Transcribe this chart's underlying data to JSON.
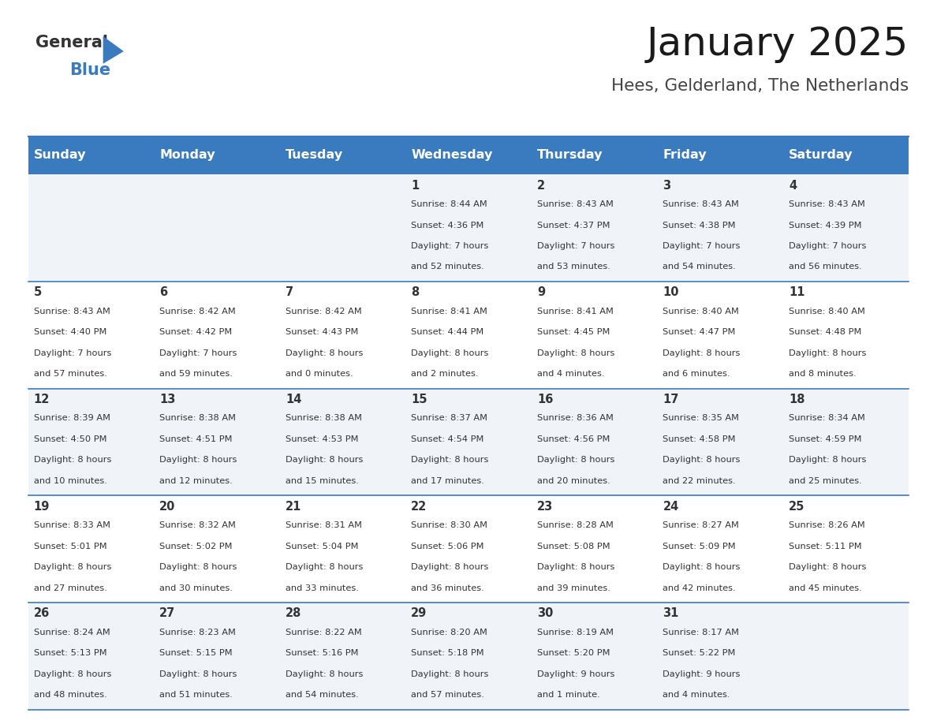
{
  "title": "January 2025",
  "subtitle": "Hees, Gelderland, The Netherlands",
  "header_bg": "#3a7bbf",
  "header_text_color": "#ffffff",
  "cell_bg_even": "#f0f4f8",
  "cell_bg_odd": "#ffffff",
  "row_line_color": "#3a7bbf",
  "text_color": "#333333",
  "days_of_week": [
    "Sunday",
    "Monday",
    "Tuesday",
    "Wednesday",
    "Thursday",
    "Friday",
    "Saturday"
  ],
  "calendar_data": [
    [
      {
        "day": "",
        "sunrise": "",
        "sunset": "",
        "daylight": ""
      },
      {
        "day": "",
        "sunrise": "",
        "sunset": "",
        "daylight": ""
      },
      {
        "day": "",
        "sunrise": "",
        "sunset": "",
        "daylight": ""
      },
      {
        "day": "1",
        "sunrise": "Sunrise: 8:44 AM",
        "sunset": "Sunset: 4:36 PM",
        "daylight": "Daylight: 7 hours\nand 52 minutes."
      },
      {
        "day": "2",
        "sunrise": "Sunrise: 8:43 AM",
        "sunset": "Sunset: 4:37 PM",
        "daylight": "Daylight: 7 hours\nand 53 minutes."
      },
      {
        "day": "3",
        "sunrise": "Sunrise: 8:43 AM",
        "sunset": "Sunset: 4:38 PM",
        "daylight": "Daylight: 7 hours\nand 54 minutes."
      },
      {
        "day": "4",
        "sunrise": "Sunrise: 8:43 AM",
        "sunset": "Sunset: 4:39 PM",
        "daylight": "Daylight: 7 hours\nand 56 minutes."
      }
    ],
    [
      {
        "day": "5",
        "sunrise": "Sunrise: 8:43 AM",
        "sunset": "Sunset: 4:40 PM",
        "daylight": "Daylight: 7 hours\nand 57 minutes."
      },
      {
        "day": "6",
        "sunrise": "Sunrise: 8:42 AM",
        "sunset": "Sunset: 4:42 PM",
        "daylight": "Daylight: 7 hours\nand 59 minutes."
      },
      {
        "day": "7",
        "sunrise": "Sunrise: 8:42 AM",
        "sunset": "Sunset: 4:43 PM",
        "daylight": "Daylight: 8 hours\nand 0 minutes."
      },
      {
        "day": "8",
        "sunrise": "Sunrise: 8:41 AM",
        "sunset": "Sunset: 4:44 PM",
        "daylight": "Daylight: 8 hours\nand 2 minutes."
      },
      {
        "day": "9",
        "sunrise": "Sunrise: 8:41 AM",
        "sunset": "Sunset: 4:45 PM",
        "daylight": "Daylight: 8 hours\nand 4 minutes."
      },
      {
        "day": "10",
        "sunrise": "Sunrise: 8:40 AM",
        "sunset": "Sunset: 4:47 PM",
        "daylight": "Daylight: 8 hours\nand 6 minutes."
      },
      {
        "day": "11",
        "sunrise": "Sunrise: 8:40 AM",
        "sunset": "Sunset: 4:48 PM",
        "daylight": "Daylight: 8 hours\nand 8 minutes."
      }
    ],
    [
      {
        "day": "12",
        "sunrise": "Sunrise: 8:39 AM",
        "sunset": "Sunset: 4:50 PM",
        "daylight": "Daylight: 8 hours\nand 10 minutes."
      },
      {
        "day": "13",
        "sunrise": "Sunrise: 8:38 AM",
        "sunset": "Sunset: 4:51 PM",
        "daylight": "Daylight: 8 hours\nand 12 minutes."
      },
      {
        "day": "14",
        "sunrise": "Sunrise: 8:38 AM",
        "sunset": "Sunset: 4:53 PM",
        "daylight": "Daylight: 8 hours\nand 15 minutes."
      },
      {
        "day": "15",
        "sunrise": "Sunrise: 8:37 AM",
        "sunset": "Sunset: 4:54 PM",
        "daylight": "Daylight: 8 hours\nand 17 minutes."
      },
      {
        "day": "16",
        "sunrise": "Sunrise: 8:36 AM",
        "sunset": "Sunset: 4:56 PM",
        "daylight": "Daylight: 8 hours\nand 20 minutes."
      },
      {
        "day": "17",
        "sunrise": "Sunrise: 8:35 AM",
        "sunset": "Sunset: 4:58 PM",
        "daylight": "Daylight: 8 hours\nand 22 minutes."
      },
      {
        "day": "18",
        "sunrise": "Sunrise: 8:34 AM",
        "sunset": "Sunset: 4:59 PM",
        "daylight": "Daylight: 8 hours\nand 25 minutes."
      }
    ],
    [
      {
        "day": "19",
        "sunrise": "Sunrise: 8:33 AM",
        "sunset": "Sunset: 5:01 PM",
        "daylight": "Daylight: 8 hours\nand 27 minutes."
      },
      {
        "day": "20",
        "sunrise": "Sunrise: 8:32 AM",
        "sunset": "Sunset: 5:02 PM",
        "daylight": "Daylight: 8 hours\nand 30 minutes."
      },
      {
        "day": "21",
        "sunrise": "Sunrise: 8:31 AM",
        "sunset": "Sunset: 5:04 PM",
        "daylight": "Daylight: 8 hours\nand 33 minutes."
      },
      {
        "day": "22",
        "sunrise": "Sunrise: 8:30 AM",
        "sunset": "Sunset: 5:06 PM",
        "daylight": "Daylight: 8 hours\nand 36 minutes."
      },
      {
        "day": "23",
        "sunrise": "Sunrise: 8:28 AM",
        "sunset": "Sunset: 5:08 PM",
        "daylight": "Daylight: 8 hours\nand 39 minutes."
      },
      {
        "day": "24",
        "sunrise": "Sunrise: 8:27 AM",
        "sunset": "Sunset: 5:09 PM",
        "daylight": "Daylight: 8 hours\nand 42 minutes."
      },
      {
        "day": "25",
        "sunrise": "Sunrise: 8:26 AM",
        "sunset": "Sunset: 5:11 PM",
        "daylight": "Daylight: 8 hours\nand 45 minutes."
      }
    ],
    [
      {
        "day": "26",
        "sunrise": "Sunrise: 8:24 AM",
        "sunset": "Sunset: 5:13 PM",
        "daylight": "Daylight: 8 hours\nand 48 minutes."
      },
      {
        "day": "27",
        "sunrise": "Sunrise: 8:23 AM",
        "sunset": "Sunset: 5:15 PM",
        "daylight": "Daylight: 8 hours\nand 51 minutes."
      },
      {
        "day": "28",
        "sunrise": "Sunrise: 8:22 AM",
        "sunset": "Sunset: 5:16 PM",
        "daylight": "Daylight: 8 hours\nand 54 minutes."
      },
      {
        "day": "29",
        "sunrise": "Sunrise: 8:20 AM",
        "sunset": "Sunset: 5:18 PM",
        "daylight": "Daylight: 8 hours\nand 57 minutes."
      },
      {
        "day": "30",
        "sunrise": "Sunrise: 8:19 AM",
        "sunset": "Sunset: 5:20 PM",
        "daylight": "Daylight: 9 hours\nand 1 minute."
      },
      {
        "day": "31",
        "sunrise": "Sunrise: 8:17 AM",
        "sunset": "Sunset: 5:22 PM",
        "daylight": "Daylight: 9 hours\nand 4 minutes."
      },
      {
        "day": "",
        "sunrise": "",
        "sunset": "",
        "daylight": ""
      }
    ]
  ],
  "logo_text1": "General",
  "logo_text2": "Blue",
  "logo_text1_color": "#333333",
  "logo_text2_color": "#3a7bbf",
  "logo_triangle_color": "#3a7bbf"
}
